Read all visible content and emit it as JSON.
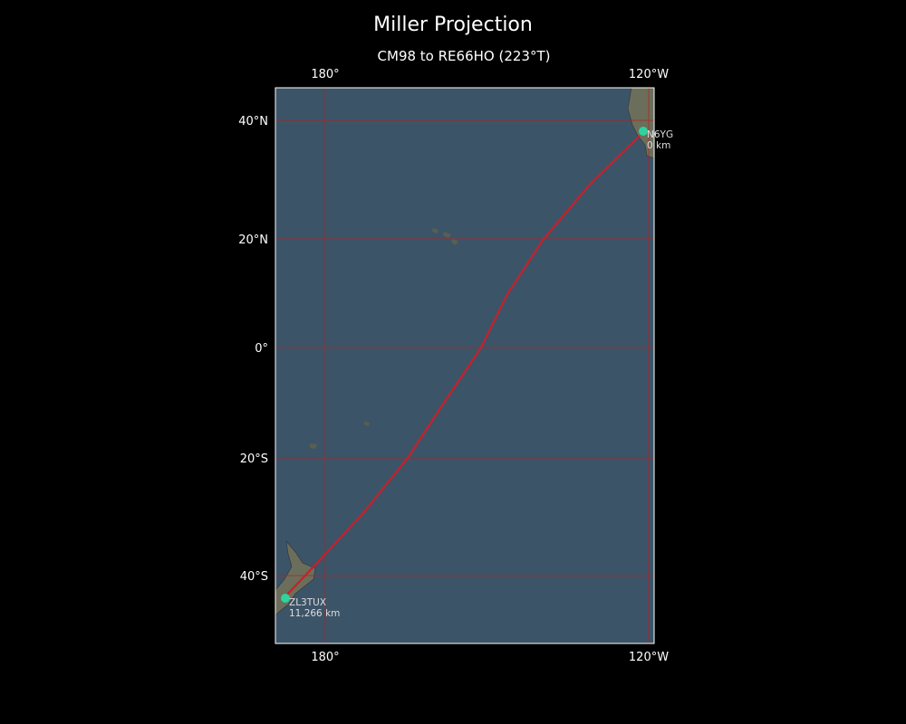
{
  "header": {
    "title": "Miller Projection",
    "subtitle": "CM98 to RE66HO (223°T)"
  },
  "map": {
    "top_labels": [
      "180°",
      "120°W"
    ],
    "bottom_labels": [
      "180°",
      "120°W"
    ],
    "left_labels": [
      "40°N",
      "20°N",
      "0°",
      "20°S",
      "40°S"
    ],
    "stations": [
      {
        "call": "N6YG",
        "distance": "0 km"
      },
      {
        "call": "ZL3TUX",
        "distance": "11,266 km"
      }
    ]
  }
}
